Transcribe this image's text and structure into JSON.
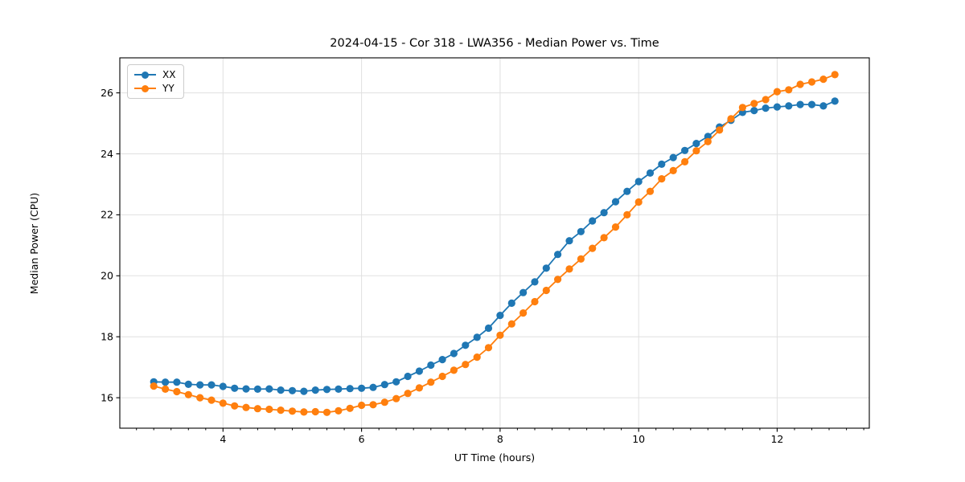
{
  "chart_data": {
    "type": "line",
    "title": "2024-04-15 - Cor 318 - LWA356 - Median Power vs. Time",
    "xlabel": "UT Time (hours)",
    "ylabel": "Median Power (CPU)",
    "xlim": [
      2.51,
      13.33
    ],
    "ylim": [
      15.0,
      27.15
    ],
    "xticks": [
      4,
      6,
      8,
      10,
      12
    ],
    "yticks": [
      16,
      18,
      20,
      22,
      24,
      26
    ],
    "x_minor_tick_step": 0.25,
    "grid": true,
    "legend_position": "upper-left",
    "background_color": "#ffffff",
    "grid_color": "#e0e0e0",
    "x": [
      3.0,
      3.167,
      3.333,
      3.5,
      3.667,
      3.833,
      4.0,
      4.167,
      4.333,
      4.5,
      4.667,
      4.833,
      5.0,
      5.167,
      5.333,
      5.5,
      5.667,
      5.833,
      6.0,
      6.167,
      6.333,
      6.5,
      6.667,
      6.833,
      7.0,
      7.167,
      7.333,
      7.5,
      7.667,
      7.833,
      8.0,
      8.167,
      8.333,
      8.5,
      8.667,
      8.833,
      9.0,
      9.167,
      9.333,
      9.5,
      9.667,
      9.833,
      10.0,
      10.167,
      10.333,
      10.5,
      10.667,
      10.833,
      11.0,
      11.167,
      11.333,
      11.5,
      11.667,
      11.833,
      12.0,
      12.167,
      12.333,
      12.5,
      12.667,
      12.833
    ],
    "series": [
      {
        "name": "XX",
        "color": "#1f77b4",
        "values": [
          16.52,
          16.51,
          16.51,
          16.44,
          16.42,
          16.42,
          16.37,
          16.31,
          16.29,
          16.28,
          16.29,
          16.25,
          16.23,
          16.21,
          16.25,
          16.27,
          16.28,
          16.3,
          16.31,
          16.34,
          16.43,
          16.52,
          16.7,
          16.87,
          17.07,
          17.25,
          17.45,
          17.72,
          17.98,
          18.28,
          18.7,
          19.1,
          19.45,
          19.8,
          20.25,
          20.7,
          21.15,
          21.45,
          21.8,
          22.07,
          22.43,
          22.77,
          23.09,
          23.37,
          23.66,
          23.88,
          24.11,
          24.34,
          24.57,
          24.88,
          25.1,
          25.36,
          25.42,
          25.5,
          25.54,
          25.57,
          25.62,
          25.62,
          25.57,
          25.73
        ]
      },
      {
        "name": "YY",
        "color": "#ff7f0e",
        "values": [
          16.38,
          16.28,
          16.2,
          16.1,
          16.0,
          15.92,
          15.82,
          15.73,
          15.68,
          15.64,
          15.62,
          15.59,
          15.56,
          15.53,
          15.54,
          15.52,
          15.57,
          15.65,
          15.75,
          15.77,
          15.85,
          15.97,
          16.14,
          16.32,
          16.51,
          16.7,
          16.9,
          17.09,
          17.33,
          17.64,
          18.05,
          18.42,
          18.78,
          19.15,
          19.52,
          19.88,
          20.22,
          20.55,
          20.9,
          21.25,
          21.6,
          22.0,
          22.42,
          22.77,
          23.18,
          23.45,
          23.74,
          24.1,
          24.4,
          24.78,
          25.15,
          25.52,
          25.65,
          25.78,
          26.04,
          26.1,
          26.28,
          26.36,
          26.45,
          26.6
        ]
      }
    ]
  }
}
